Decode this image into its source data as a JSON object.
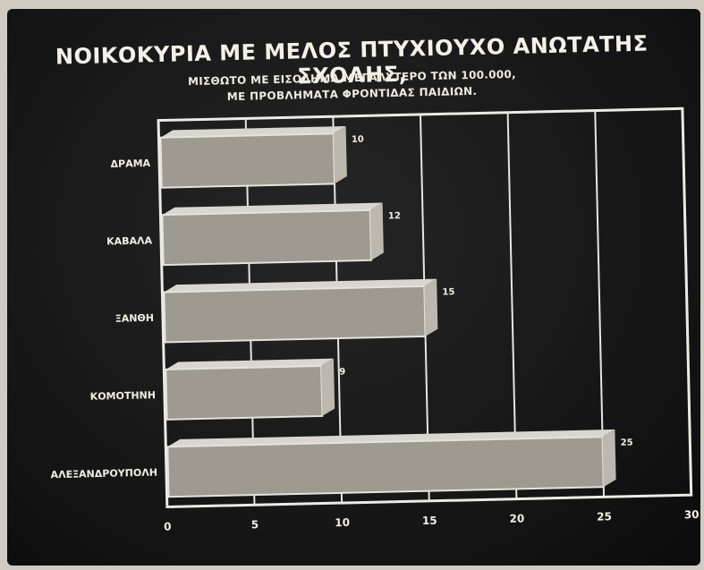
{
  "chart_data": {
    "type": "bar",
    "orientation": "horizontal",
    "title": "ΝΟΙΚΟΚΥΡΙΑ ΜΕ ΜΕΛΟΣ ΠΤΥΧΙΟΥΧΟ ΑΝΩΤΑΤΗΣ ΣΧΟΛΗΣ,",
    "subtitle_lines": [
      "ΜΙΣΘΩΤΟ ΜΕ ΕΙΣΟΔΗΜΑ ΜΕΓΑΛΥΤΕΡΟ ΤΩΝ 100.000,",
      "ΜΕ ΠΡΟΒΛΗΜΑΤΑ ΦΡΟΝΤΙΔΑΣ ΠΑΙΔΙΩΝ."
    ],
    "categories": [
      "ΔΡΑΜΑ",
      "ΚΑΒΑΛΑ",
      "ΞΑΝΘΗ",
      "ΚΟΜΟΤΗΝΗ",
      "ΑΛΕΞΑΝΔΡΟΥΠΟΛΗ"
    ],
    "values": [
      10,
      12,
      15,
      9,
      25
    ],
    "value_labels": [
      "10",
      "12",
      "15",
      "9",
      "25"
    ],
    "xlim": [
      0,
      30
    ],
    "x_ticks": [
      0,
      5,
      10,
      15,
      20,
      25,
      30
    ],
    "x_tick_labels": [
      "0",
      "5",
      "10",
      "15",
      "20",
      "25",
      "30"
    ],
    "grid": true,
    "legend": "none",
    "colors": {
      "bar_front": "#9e9a92",
      "bar_top": "#d9d6cf",
      "bar_side": "#bcb8b0",
      "grid": "#e8e5de",
      "frame": "#ecebe4",
      "text": "#f2efe6"
    }
  }
}
